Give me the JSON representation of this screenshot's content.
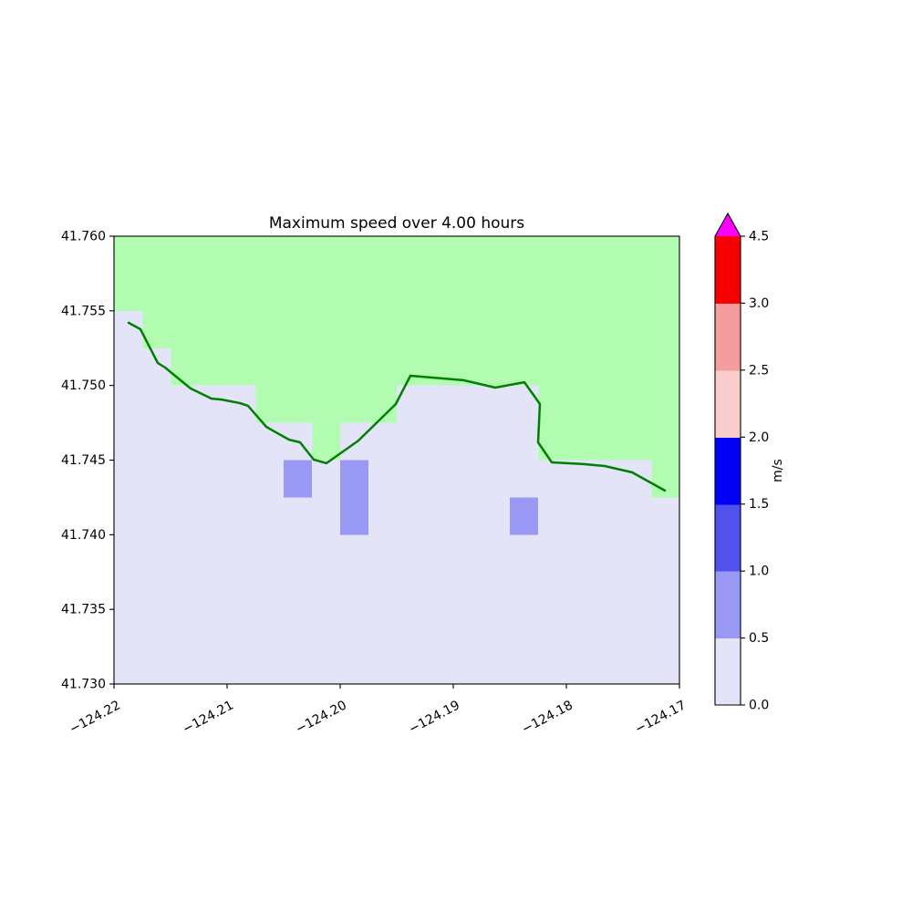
{
  "chart_data": {
    "type": "heatmap",
    "title": "Maximum speed over 4.00 hours",
    "xlabel": "",
    "ylabel": "",
    "xlim": [
      -124.22,
      -124.17
    ],
    "ylim": [
      41.73,
      41.76
    ],
    "x_ticks": [
      -124.22,
      -124.21,
      -124.2,
      -124.19,
      -124.18,
      -124.17
    ],
    "x_tick_labels": [
      "−124.22",
      "−124.21",
      "−124.20",
      "−124.19",
      "−124.18",
      "−124.17"
    ],
    "y_ticks": [
      41.76,
      41.755,
      41.75,
      41.745,
      41.74,
      41.735,
      41.73
    ],
    "y_tick_labels": [
      "41.760",
      "41.755",
      "41.750",
      "41.745",
      "41.740",
      "41.735",
      "41.730"
    ],
    "grid": {
      "n_cols": 20,
      "n_rows": 12,
      "cell_size_deg": 0.0025,
      "cell_legend": {
        ".": "water speed 0.0-0.5 m/s",
        "P": "water speed 0.5-1.0 m/s",
        "L": "land (masked, no data)"
      },
      "rows_top_to_bottom": [
        "LLLLLLLLLLLLLLLLLLLL",
        "LLLLLLLLLLLLLLLLLLLL",
        ".LLLLLLLLLLLLLLLLLLL",
        "..LLLLLLLLLLLLLLLLLL",
        ".....LLLLL.....LLLLL",
        ".......L.......LLLLL",
        "......P.P..........L",
        "........P.....P.....",
        "....................",
        "....................",
        "....................",
        "...................."
      ]
    },
    "colors": {
      "land": "#b2fcb2",
      "water_low": "#e4e4f9",
      "water_mid": "#9999f5",
      "coastline": "#008000",
      "frame": "#000000"
    },
    "coastline_lon_lat": [
      [
        -124.21871,
        41.7542
      ],
      [
        -124.21766,
        41.75377
      ],
      [
        -124.21613,
        41.75151
      ],
      [
        -124.21548,
        41.7512
      ],
      [
        -124.21323,
        41.7498
      ],
      [
        -124.21137,
        41.74912
      ],
      [
        -124.21048,
        41.74906
      ],
      [
        -124.20887,
        41.74882
      ],
      [
        -124.20815,
        41.74864
      ],
      [
        -124.20653,
        41.74723
      ],
      [
        -124.20613,
        41.74705
      ],
      [
        -124.20452,
        41.74637
      ],
      [
        -124.20355,
        41.74619
      ],
      [
        -124.20234,
        41.74503
      ],
      [
        -124.20121,
        41.74479
      ],
      [
        -124.19839,
        41.74631
      ],
      [
        -124.19508,
        41.74876
      ],
      [
        -124.19379,
        41.75065
      ],
      [
        -124.18911,
        41.75035
      ],
      [
        -124.18629,
        41.74986
      ],
      [
        -124.18371,
        41.75022
      ],
      [
        -124.18234,
        41.74876
      ],
      [
        -124.1825,
        41.74619
      ],
      [
        -124.18129,
        41.74485
      ],
      [
        -124.17847,
        41.74473
      ],
      [
        -124.17661,
        41.7446
      ],
      [
        -124.17419,
        41.74418
      ],
      [
        -124.17129,
        41.74296
      ]
    ],
    "colorbar": {
      "label": "m/s",
      "extend": "max",
      "spacing": "uniform",
      "boundaries": [
        0.0,
        0.5,
        1.0,
        1.5,
        2.0,
        2.5,
        3.0,
        4.5
      ],
      "tick_labels_bottom_to_top": [
        "0.0",
        "0.5",
        "1.0",
        "1.5",
        "2.0",
        "2.5",
        "3.0",
        "4.5"
      ],
      "segment_colors_bottom_to_top": [
        "#e4e4f9",
        "#9999f5",
        "#5151eb",
        "#0000f8",
        "#facdcd",
        "#f59c9c",
        "#f80000"
      ],
      "over_color": "#fb00fb"
    }
  }
}
